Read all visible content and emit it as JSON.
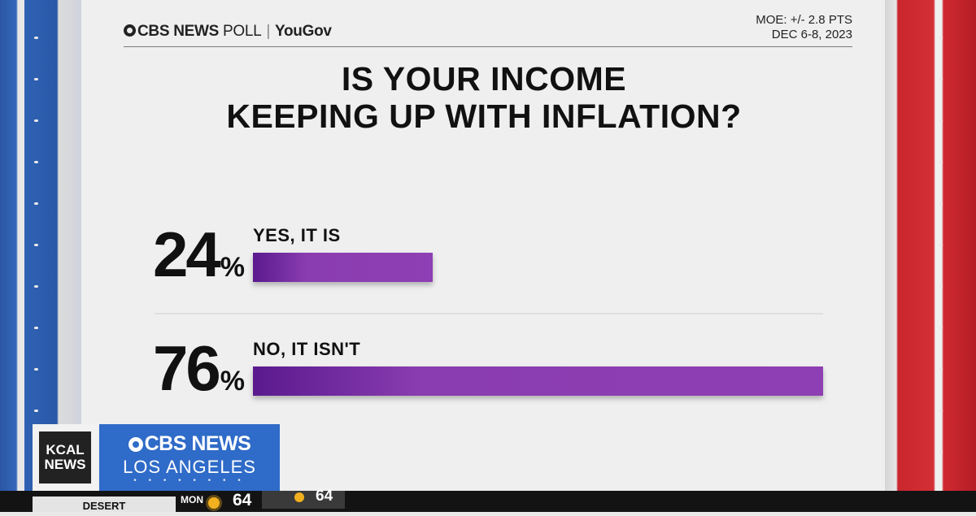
{
  "header": {
    "brand_cbs": "CBS NEWS",
    "brand_poll": "POLL",
    "brand_partner": "YouGov",
    "moe": "MOE: +/- 2.8 PTS",
    "dates": "DEC 6-8, 2023"
  },
  "chart_data": {
    "type": "bar",
    "orientation": "horizontal",
    "title": "IS YOUR INCOME KEEPING UP WITH INFLATION?",
    "title_lines": [
      "IS YOUR INCOME",
      "KEEPING UP WITH INFLATION?"
    ],
    "categories": [
      "YES, IT IS",
      "NO, IT ISN'T"
    ],
    "values": [
      24,
      76
    ],
    "value_labels": [
      "24",
      "76"
    ],
    "unit": "%",
    "xlim": [
      0,
      76
    ],
    "bar_color": "#8a3db0",
    "grid": false
  },
  "station": {
    "logo": [
      "KCAL",
      "NEWS"
    ],
    "network_line1": "CBS NEWS",
    "network_line2": "LOS ANGELES"
  },
  "ticker": {
    "location": "DESERT",
    "day": "MON",
    "temp": "64",
    "temp2": "64"
  },
  "colors": {
    "bar": "#8a3db0",
    "network_blue": "#2f6bc8",
    "stripe_red": "#d42f36",
    "stripe_blue": "#2f62b4"
  }
}
